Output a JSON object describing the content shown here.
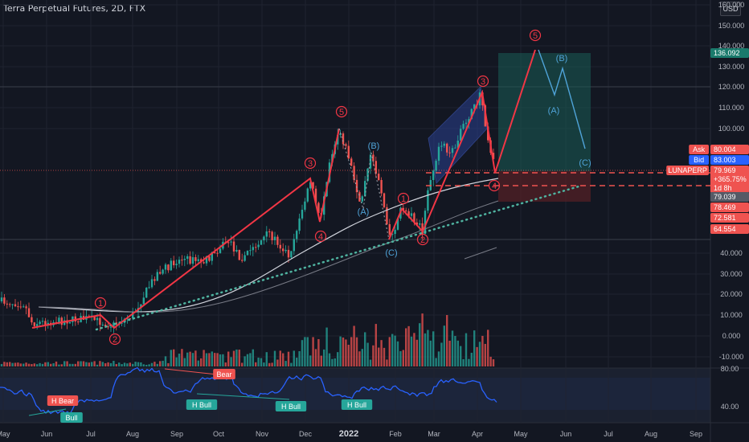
{
  "header": {
    "title": "Terra Perpetual Futures, 2D, FTX",
    "currency": "USD"
  },
  "colors": {
    "background": "#131722",
    "up": "#26a69a",
    "down": "#ef5350",
    "wave": "#f23645",
    "wave_alt": "#4fa3d8",
    "rsi": "#2962ff",
    "ma_fast": "#d1d4dc",
    "ma_slow": "#787b86",
    "trend_dots": "#4fb3a0"
  },
  "chart_data": {
    "type": "candlestick",
    "title": "Terra Perpetual Futures, 2D, FTX",
    "y_ticks": [
      "160.000",
      "150.000",
      "140.000",
      "130.000",
      "120.000",
      "110.000",
      "100.000",
      "40.000",
      "30.000",
      "20.000",
      "10.000",
      "0.000",
      "-10.000"
    ],
    "x_ticks": [
      "May",
      "Jun",
      "Jul",
      "Aug",
      "Sep",
      "Oct",
      "Nov",
      "Dec",
      "2022",
      "Feb",
      "Mar",
      "Apr",
      "May",
      "Jun",
      "Jul",
      "Aug",
      "Sep"
    ],
    "price_labels": [
      {
        "name": "target",
        "text": "136.092",
        "color": "#1a7a6c"
      },
      {
        "name": "ask",
        "prefix": "Ask",
        "text": "80.004",
        "color": "#ef5350"
      },
      {
        "name": "bid",
        "prefix": "Bid",
        "text": "83.003",
        "color": "#2962ff"
      },
      {
        "name": "last",
        "prefix": "LUNAPERP",
        "text": "79.969",
        "extra": "+365.75%",
        "extra2": "1d 8h",
        "color": "#ef5350"
      },
      {
        "name": "ma-fast",
        "text": "79.039",
        "color": "#555a66"
      },
      {
        "name": "level-1",
        "text": "78.469",
        "color": "#ef5350"
      },
      {
        "name": "level-2",
        "text": "72.581",
        "color": "#ef5350"
      },
      {
        "name": "level-3",
        "text": "64.554",
        "color": "#ef5350"
      }
    ],
    "rsi_ticks": [
      "80.00",
      "40.00"
    ],
    "wave_labels": [
      {
        "text": "1",
        "style": "circle",
        "color": "#f23645"
      },
      {
        "text": "2",
        "style": "circle",
        "color": "#f23645"
      },
      {
        "text": "3",
        "style": "circle",
        "color": "#f23645"
      },
      {
        "text": "4",
        "style": "circle",
        "color": "#f23645"
      },
      {
        "text": "5",
        "style": "circle",
        "color": "#f23645"
      },
      {
        "text": "(B)",
        "style": "plain",
        "color": "#4fa3d8"
      },
      {
        "text": "(A)",
        "style": "plain",
        "color": "#4fa3d8"
      },
      {
        "text": "(C)",
        "style": "plain",
        "color": "#4fa3d8"
      },
      {
        "text": "1",
        "style": "circle",
        "color": "#f23645"
      },
      {
        "text": "2",
        "style": "circle",
        "color": "#f23645"
      },
      {
        "text": "3",
        "style": "circle",
        "color": "#f23645"
      },
      {
        "text": "4",
        "style": "circle",
        "color": "#f23645"
      },
      {
        "text": "5",
        "style": "circle",
        "color": "#f23645"
      },
      {
        "text": "(B)",
        "style": "plain",
        "color": "#4fa3d8"
      },
      {
        "text": "(A)",
        "style": "plain",
        "color": "#4fa3d8"
      },
      {
        "text": "(C)",
        "style": "plain",
        "color": "#4fa3d8"
      }
    ],
    "rsi_labels": [
      {
        "text": "H Bear",
        "color": "#ef5350"
      },
      {
        "text": "Bull",
        "color": "#26a69a"
      },
      {
        "text": "Bear",
        "color": "#ef5350"
      },
      {
        "text": "H Bull",
        "color": "#26a69a"
      },
      {
        "text": "H Bull",
        "color": "#26a69a"
      },
      {
        "text": "H Bull",
        "color": "#26a69a"
      }
    ]
  }
}
